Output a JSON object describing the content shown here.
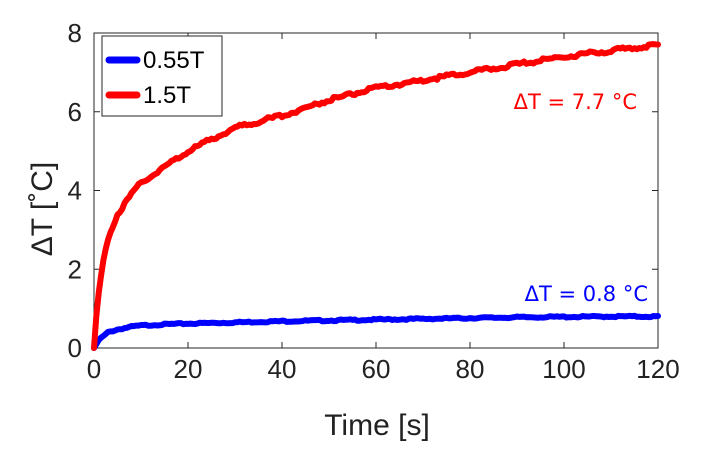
{
  "chart_data": {
    "type": "line",
    "title": "",
    "xlabel": "Time [s]",
    "ylabel": "ΔT [˚C]",
    "xlim": [
      0,
      120
    ],
    "ylim": [
      0,
      8
    ],
    "x_ticks": [
      0,
      20,
      40,
      60,
      80,
      100,
      120
    ],
    "y_ticks": [
      0,
      2,
      4,
      6,
      8
    ],
    "grid": false,
    "legend_position": "top-left",
    "series": [
      {
        "name": "0.55T",
        "color": "#0000ff",
        "x": [
          0,
          1,
          2,
          3,
          5,
          8,
          10,
          15,
          20,
          30,
          40,
          50,
          60,
          70,
          80,
          90,
          100,
          110,
          120
        ],
        "values": [
          0.0,
          0.2,
          0.3,
          0.4,
          0.47,
          0.54,
          0.57,
          0.6,
          0.62,
          0.65,
          0.68,
          0.7,
          0.72,
          0.74,
          0.76,
          0.78,
          0.79,
          0.8,
          0.8
        ]
      },
      {
        "name": "1.5T",
        "color": "#ff0000",
        "x": [
          0,
          0.5,
          1,
          2,
          3,
          5,
          8,
          10,
          15,
          20,
          25,
          30,
          40,
          50,
          60,
          70,
          80,
          90,
          100,
          110,
          120
        ],
        "values": [
          0.0,
          0.8,
          1.4,
          2.2,
          2.8,
          3.4,
          3.9,
          4.2,
          4.6,
          5.0,
          5.3,
          5.6,
          5.9,
          6.3,
          6.6,
          6.8,
          7.0,
          7.2,
          7.4,
          7.55,
          7.7
        ]
      }
    ],
    "annotations": [
      {
        "text": "ΔT = 7.7 °C",
        "color": "#ff0000",
        "series": "1.5T"
      },
      {
        "text": "ΔT = 0.8 °C",
        "color": "#0000ff",
        "series": "0.55T"
      }
    ]
  }
}
